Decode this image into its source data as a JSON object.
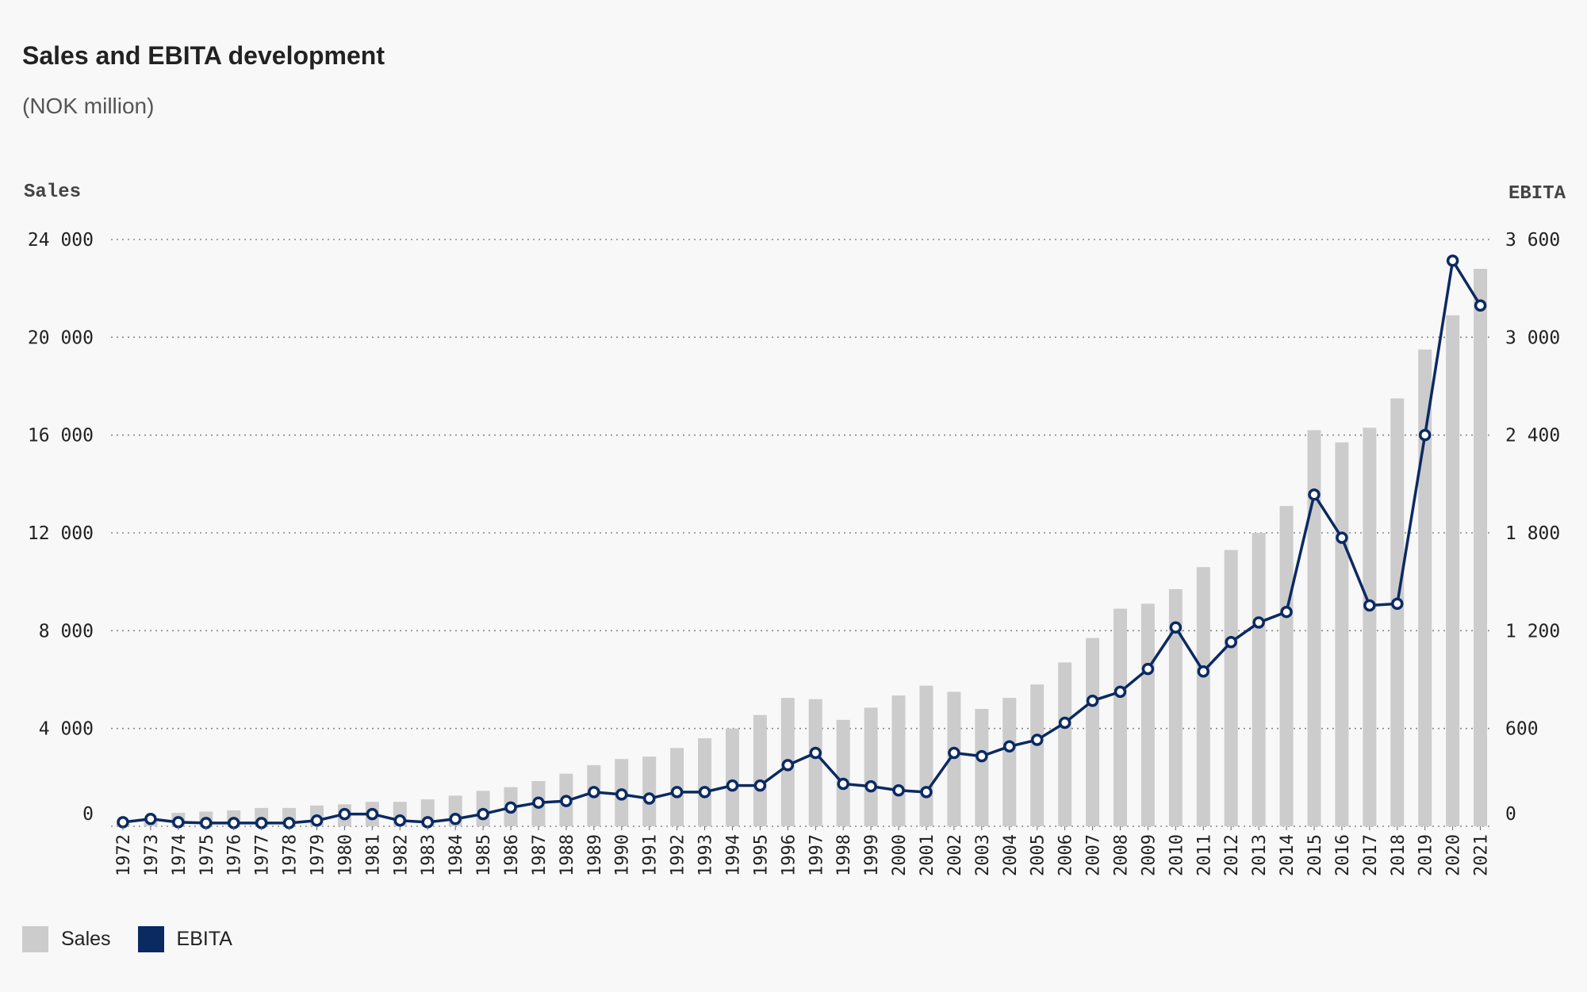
{
  "chart_data": {
    "type": "bar+line",
    "title": "Sales and EBITA development",
    "subtitle": "(NOK million)",
    "left_axis_label": "Sales",
    "right_axis_label": "EBITA",
    "left_ylim": [
      0,
      24000
    ],
    "right_ylim": [
      0,
      3600
    ],
    "left_ticks": [
      "0",
      "4 000",
      "8 000",
      "12 000",
      "16 000",
      "20 000",
      "24 000"
    ],
    "left_tick_values": [
      0,
      4000,
      8000,
      12000,
      16000,
      20000,
      24000
    ],
    "right_ticks": [
      "0",
      "600",
      "1 200",
      "1 800",
      "2 400",
      "3 000",
      "3 600"
    ],
    "right_tick_values": [
      0,
      600,
      1200,
      1800,
      2400,
      3000,
      3600
    ],
    "categories": [
      "1972",
      "1973",
      "1974",
      "1975",
      "1976",
      "1977",
      "1978",
      "1979",
      "1980",
      "1981",
      "1982",
      "1983",
      "1984",
      "1985",
      "1986",
      "1987",
      "1988",
      "1989",
      "1990",
      "1991",
      "1992",
      "1993",
      "1994",
      "1995",
      "1996",
      "1997",
      "1998",
      "1999",
      "2000",
      "2001",
      "2002",
      "2003",
      "2004",
      "2005",
      "2006",
      "2007",
      "2008",
      "2009",
      "2010",
      "2011",
      "2012",
      "2013",
      "2014",
      "2015",
      "2016",
      "2017",
      "2018",
      "2019",
      "2020",
      "2021"
    ],
    "series": [
      {
        "name": "Sales",
        "type": "bar",
        "axis": "left",
        "color": "#cccccc",
        "values": [
          100,
          200,
          550,
          600,
          650,
          750,
          750,
          850,
          900,
          1000,
          1000,
          1100,
          1250,
          1450,
          1600,
          1850,
          2150,
          2500,
          2750,
          2850,
          3200,
          3600,
          4000,
          4550,
          5250,
          5200,
          4350,
          4850,
          5350,
          5750,
          5500,
          4800,
          5250,
          5800,
          6700,
          7700,
          8900,
          9100,
          9700,
          10600,
          11300,
          12000,
          13100,
          16200,
          15700,
          16300,
          17500,
          19500,
          20900,
          22800
        ]
      },
      {
        "name": "EBITA",
        "type": "line",
        "axis": "right",
        "color": "#0b2a62",
        "values": [
          25,
          45,
          25,
          20,
          20,
          20,
          20,
          35,
          75,
          75,
          35,
          25,
          45,
          75,
          115,
          145,
          155,
          210,
          195,
          170,
          210,
          210,
          250,
          250,
          375,
          450,
          260,
          245,
          220,
          210,
          450,
          430,
          490,
          530,
          635,
          770,
          825,
          965,
          1220,
          950,
          1130,
          1250,
          1315,
          2035,
          1770,
          1355,
          1365,
          2400,
          3470,
          3195
        ]
      }
    ],
    "grid": "horizontal dotted",
    "legend": "bottom-left"
  }
}
